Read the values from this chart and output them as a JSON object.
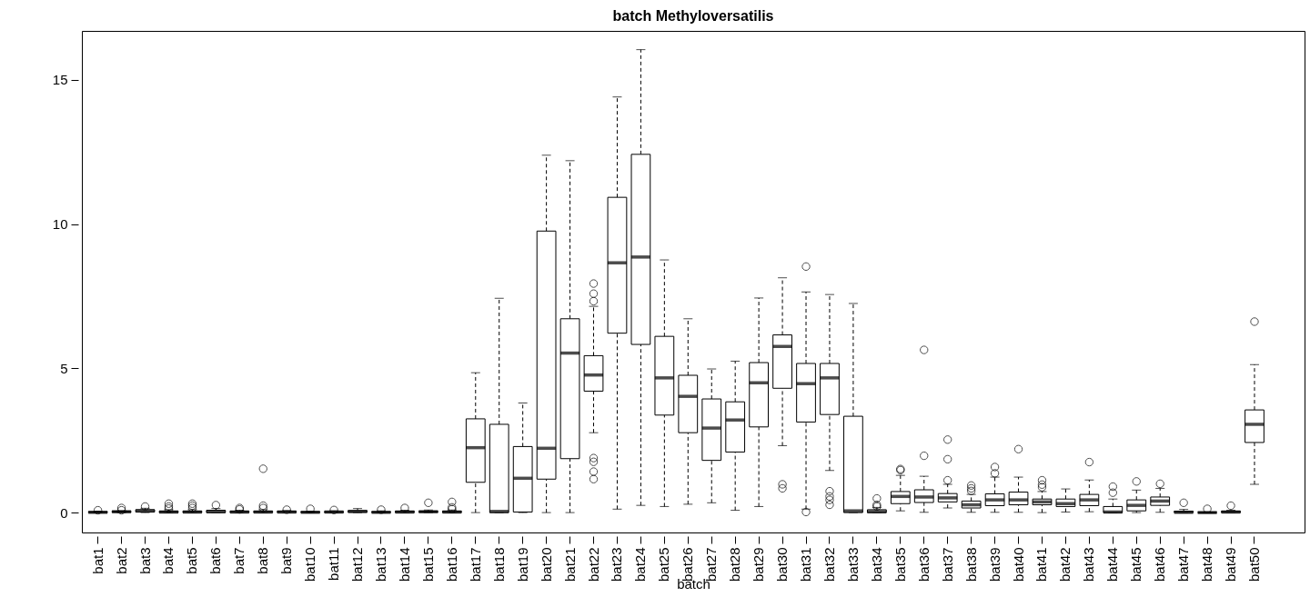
{
  "chart_data": {
    "type": "box",
    "title": "batch  Methyloversatilis",
    "xlabel": "batch",
    "categories": [
      "bat1",
      "bat2",
      "bat3",
      "bat4",
      "bat5",
      "bat6",
      "bat7",
      "bat8",
      "bat9",
      "bat10",
      "bat11",
      "bat12",
      "bat13",
      "bat14",
      "bat15",
      "bat16",
      "bat17",
      "bat18",
      "bat19",
      "bat20",
      "bat21",
      "bat22",
      "bat23",
      "bat24",
      "bat25",
      "bat26",
      "bat27",
      "bat28",
      "bat29",
      "bat30",
      "bat31",
      "bat32",
      "bat33",
      "bat34",
      "bat35",
      "bat36",
      "bat37",
      "bat38",
      "bat39",
      "bat40",
      "bat41",
      "bat42",
      "bat43",
      "bat44",
      "bat45",
      "bat46",
      "bat47",
      "bat48",
      "bat49",
      "bat50"
    ],
    "boxes": [
      {
        "low": 0,
        "q1": 0,
        "median": 0.01,
        "q3": 0.03,
        "high": 0.05,
        "outliers": [
          0.08
        ]
      },
      {
        "low": 0,
        "q1": 0.01,
        "median": 0.03,
        "q3": 0.05,
        "high": 0.06,
        "outliers": [
          0.16,
          0.08
        ]
      },
      {
        "low": 0,
        "q1": 0.02,
        "median": 0.06,
        "q3": 0.1,
        "high": 0.15,
        "outliers": [
          0.21
        ]
      },
      {
        "low": 0,
        "q1": 0,
        "median": 0.02,
        "q3": 0.05,
        "high": 0.1,
        "outliers": [
          0.31,
          0.21,
          0.14
        ]
      },
      {
        "low": 0,
        "q1": 0,
        "median": 0.02,
        "q3": 0.05,
        "high": 0.1,
        "outliers": [
          0.31,
          0.24,
          0.16
        ]
      },
      {
        "low": 0,
        "q1": 0,
        "median": 0.03,
        "q3": 0.08,
        "high": 0.14,
        "outliers": [
          0.26
        ]
      },
      {
        "low": 0,
        "q1": 0,
        "median": 0.02,
        "q3": 0.05,
        "high": 0.08,
        "outliers": [
          0.16,
          0.11
        ]
      },
      {
        "low": 0,
        "q1": 0,
        "median": 0.02,
        "q3": 0.05,
        "high": 0.1,
        "outliers": [
          1.52,
          0.24,
          0.16
        ]
      },
      {
        "low": 0,
        "q1": 0,
        "median": 0.02,
        "q3": 0.05,
        "high": 0.07,
        "outliers": [
          0.1
        ]
      },
      {
        "low": 0,
        "q1": 0,
        "median": 0.01,
        "q3": 0.03,
        "high": 0.05,
        "outliers": [
          0.13
        ]
      },
      {
        "low": 0,
        "q1": 0,
        "median": 0.02,
        "q3": 0.04,
        "high": 0.06,
        "outliers": [
          0.09
        ]
      },
      {
        "low": 0,
        "q1": 0.01,
        "median": 0.04,
        "q3": 0.07,
        "high": 0.14
      },
      {
        "low": 0,
        "q1": 0,
        "median": 0.01,
        "q3": 0.03,
        "high": 0.06,
        "outliers": [
          0.1
        ]
      },
      {
        "low": 0,
        "q1": 0,
        "median": 0.02,
        "q3": 0.05,
        "high": 0.08,
        "outliers": [
          0.16
        ]
      },
      {
        "low": 0,
        "q1": 0.01,
        "median": 0.03,
        "q3": 0.05,
        "high": 0.09,
        "outliers": [
          0.34
        ]
      },
      {
        "low": 0,
        "q1": 0,
        "median": 0.02,
        "q3": 0.05,
        "high": 0.09,
        "outliers": [
          0.37,
          0.18,
          0.12
        ]
      },
      {
        "low": 0,
        "q1": 1.05,
        "median": 2.25,
        "q3": 3.25,
        "high": 4.85
      },
      {
        "low": 0,
        "q1": 0,
        "median": 0.04,
        "q3": 3.06,
        "high": 7.43
      },
      {
        "low": 0,
        "q1": 0.02,
        "median": 1.19,
        "q3": 2.29,
        "high": 3.8
      },
      {
        "low": 0,
        "q1": 1.16,
        "median": 2.23,
        "q3": 9.76,
        "high": 12.39
      },
      {
        "low": 0,
        "q1": 1.87,
        "median": 5.53,
        "q3": 6.72,
        "high": 12.2
      },
      {
        "low": 2.77,
        "q1": 4.21,
        "median": 4.77,
        "q3": 5.44,
        "high": 7.15,
        "outliers": [
          7.94,
          7.59,
          7.33,
          1.89,
          1.76,
          1.42,
          1.16
        ]
      },
      {
        "low": 0.12,
        "q1": 6.22,
        "median": 8.66,
        "q3": 10.93,
        "high": 14.41
      },
      {
        "low": 0.25,
        "q1": 5.83,
        "median": 8.86,
        "q3": 12.42,
        "high": 16.05
      },
      {
        "low": 0.21,
        "q1": 3.38,
        "median": 4.67,
        "q3": 6.11,
        "high": 8.76
      },
      {
        "low": 0.29,
        "q1": 2.77,
        "median": 4.03,
        "q3": 4.76,
        "high": 6.72
      },
      {
        "low": 0.34,
        "q1": 1.81,
        "median": 2.93,
        "q3": 3.94,
        "high": 4.98
      },
      {
        "low": 0.08,
        "q1": 2.1,
        "median": 3.21,
        "q3": 3.84,
        "high": 5.25
      },
      {
        "low": 0.21,
        "q1": 2.97,
        "median": 4.5,
        "q3": 5.2,
        "high": 7.44
      },
      {
        "low": 2.32,
        "q1": 4.31,
        "median": 5.76,
        "q3": 6.16,
        "high": 8.14,
        "outliers": [
          0.98,
          0.84
        ]
      },
      {
        "low": 0.12,
        "q1": 3.14,
        "median": 4.47,
        "q3": 5.17,
        "high": 7.65,
        "outliers": [
          8.53,
          0.02
        ]
      },
      {
        "low": 1.46,
        "q1": 3.4,
        "median": 4.67,
        "q3": 5.17,
        "high": 7.56,
        "outliers": [
          0.74,
          0.56,
          0.44,
          0.27
        ]
      },
      {
        "low": 0,
        "q1": 0,
        "median": 0.06,
        "q3": 3.34,
        "high": 7.25
      },
      {
        "low": 0,
        "q1": 0,
        "median": 0.03,
        "q3": 0.1,
        "high": 0.18,
        "outliers": [
          0.49,
          0.27,
          0.21
        ]
      },
      {
        "low": 0.06,
        "q1": 0.31,
        "median": 0.56,
        "q3": 0.73,
        "high": 1.29,
        "outliers": [
          1.51,
          1.47
        ]
      },
      {
        "low": 0.01,
        "q1": 0.35,
        "median": 0.54,
        "q3": 0.79,
        "high": 1.26,
        "outliers": [
          5.64,
          1.97
        ]
      },
      {
        "low": 0.16,
        "q1": 0.37,
        "median": 0.51,
        "q3": 0.66,
        "high": 0.98,
        "outliers": [
          2.53,
          1.85,
          1.12
        ]
      },
      {
        "low": 0.01,
        "q1": 0.16,
        "median": 0.27,
        "q3": 0.4,
        "high": 0.63,
        "outliers": [
          0.94,
          0.84,
          0.75
        ]
      },
      {
        "low": 0.01,
        "q1": 0.24,
        "median": 0.44,
        "q3": 0.65,
        "high": 1.23,
        "outliers": [
          1.58,
          1.36
        ]
      },
      {
        "low": 0.01,
        "q1": 0.27,
        "median": 0.44,
        "q3": 0.71,
        "high": 1.23,
        "outliers": [
          2.2
        ]
      },
      {
        "low": 0,
        "q1": 0.27,
        "median": 0.37,
        "q3": 0.47,
        "high": 0.73,
        "outliers": [
          1.12,
          0.97,
          0.88
        ]
      },
      {
        "low": 0.02,
        "q1": 0.21,
        "median": 0.31,
        "q3": 0.47,
        "high": 0.82
      },
      {
        "low": 0.03,
        "q1": 0.24,
        "median": 0.44,
        "q3": 0.63,
        "high": 1.13,
        "outliers": [
          1.75
        ]
      },
      {
        "low": 0,
        "q1": 0,
        "median": 0.02,
        "q3": 0.21,
        "high": 0.47,
        "outliers": [
          0.9,
          0.69
        ]
      },
      {
        "low": 0,
        "q1": 0.06,
        "median": 0.25,
        "q3": 0.44,
        "high": 0.78,
        "outliers": [
          1.08
        ]
      },
      {
        "low": 0.01,
        "q1": 0.25,
        "median": 0.4,
        "q3": 0.54,
        "high": 0.84,
        "outliers": [
          1.0
        ]
      },
      {
        "low": 0,
        "q1": 0,
        "median": 0.01,
        "q3": 0.05,
        "high": 0.11,
        "outliers": [
          0.34
        ]
      },
      {
        "low": 0,
        "q1": 0,
        "median": 0,
        "q3": 0.01,
        "high": 0.02,
        "outliers": [
          0.13
        ]
      },
      {
        "low": 0,
        "q1": 0,
        "median": 0.02,
        "q3": 0.05,
        "high": 0.08,
        "outliers": [
          0.24
        ]
      },
      {
        "low": 0.98,
        "q1": 2.43,
        "median": 3.06,
        "q3": 3.56,
        "high": 5.13,
        "outliers": [
          6.62
        ]
      }
    ],
    "ylim": [
      -0.69,
      16.7
    ],
    "yticks": [
      0,
      5,
      10,
      15
    ],
    "grid": false,
    "marker": "circle"
  }
}
